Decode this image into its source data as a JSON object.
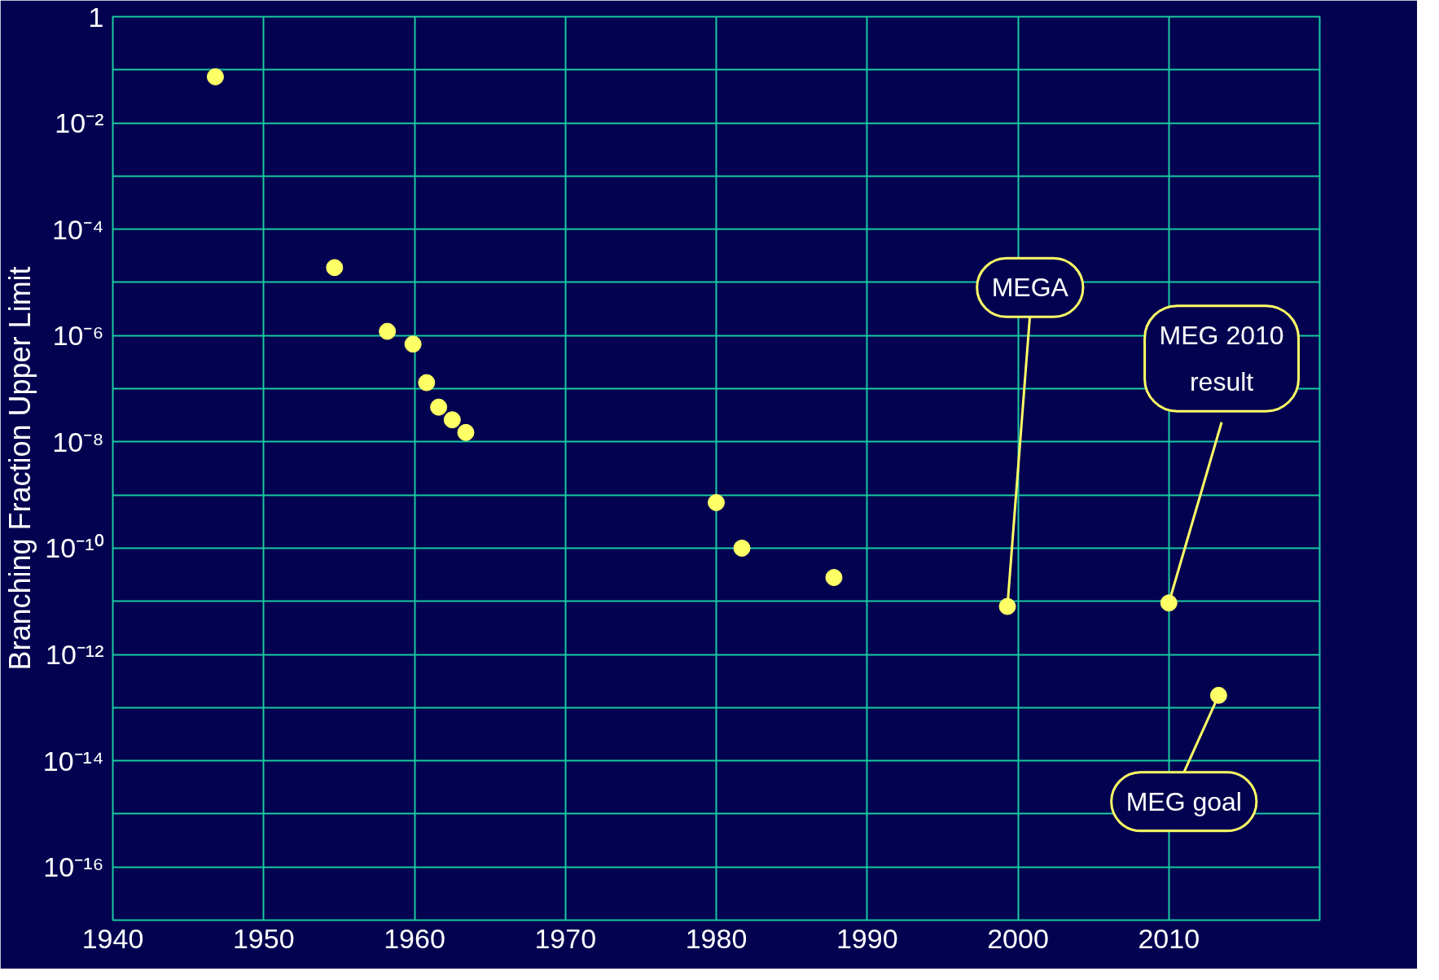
{
  "chart_data": {
    "type": "scatter",
    "ylabel": "Branching Fraction Upper Limit",
    "x": [
      1946.8,
      1954.7,
      1958.2,
      1959.9,
      1960.8,
      1961.6,
      1962.5,
      1963.4,
      1980.0,
      1981.7,
      1987.8,
      1999.3,
      2010.0,
      2013.3
    ],
    "series": [
      {
        "color": "#ffff66",
        "values": [
          0.074,
          1.9e-05,
          1.2e-06,
          6.9e-07,
          1.3e-07,
          4.5e-08,
          2.6e-08,
          1.5e-08,
          7.2e-10,
          1e-10,
          2.8e-11,
          8e-12,
          9.3e-12,
          1.7e-13
        ]
      }
    ],
    "log": "y",
    "marker": "circle",
    "grid": true,
    "xlim": [
      1940,
      2020
    ],
    "xticks": [
      1940,
      1950,
      1960,
      1970,
      1980,
      1990,
      2000,
      2010
    ],
    "ylim": [
      1e-17,
      1
    ],
    "yticks": [
      {
        "value": 1,
        "label": "1"
      },
      {
        "value": 0.1,
        "label": null
      },
      {
        "value": 0.01,
        "label": "10⁻²"
      },
      {
        "value": 0.001,
        "label": null
      },
      {
        "value": 0.0001,
        "label": "10⁻⁴"
      },
      {
        "value": 1e-05,
        "label": null
      },
      {
        "value": 1e-06,
        "label": "10⁻⁶"
      },
      {
        "value": 1e-07,
        "label": null
      },
      {
        "value": 1e-08,
        "label": "10⁻⁸"
      },
      {
        "value": 1e-09,
        "label": null
      },
      {
        "value": 1e-10,
        "label": "10⁻¹⁰"
      },
      {
        "value": 1e-11,
        "label": null
      },
      {
        "value": 1e-12,
        "label": "10⁻¹²"
      },
      {
        "value": 1e-13,
        "label": null
      },
      {
        "value": 1e-14,
        "label": "10⁻¹⁴"
      },
      {
        "value": 1e-15,
        "label": null
      },
      {
        "value": 1e-16,
        "label": "10⁻¹⁶"
      }
    ],
    "annotations": [
      {
        "text": "MEGA",
        "x": 1999.3,
        "y": 8e-12
      },
      {
        "text": "MEG 2010\nresult",
        "x": 2010.0,
        "y": 9.3e-12
      },
      {
        "text": "MEG goal",
        "x": 2013.3,
        "y": 1.7e-13
      }
    ]
  }
}
